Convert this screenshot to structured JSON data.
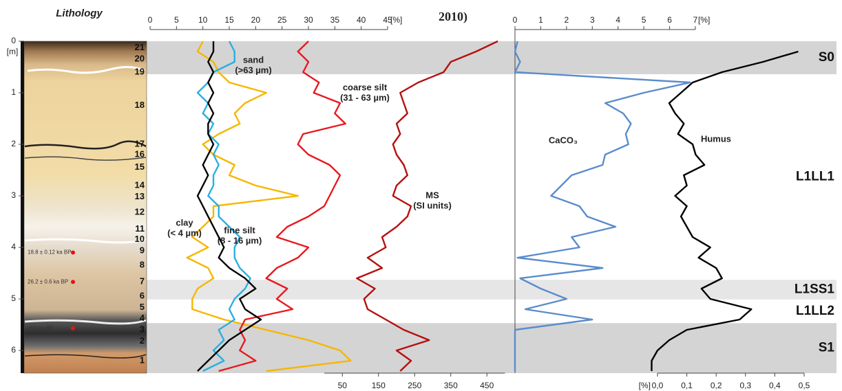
{
  "header": "2010)",
  "horizons": [
    {
      "name": "S0",
      "top": 0,
      "bottom": 0.64,
      "shade": "#d4d4d4"
    },
    {
      "name": "L1LL1",
      "top": 0.64,
      "bottom": 4.63
    },
    {
      "name": "L1SS1",
      "top": 4.63,
      "bottom": 5.01,
      "shade": "#e6e6e6"
    },
    {
      "name": "L1LL2",
      "top": 5.01,
      "bottom": 5.47
    },
    {
      "name": "S1",
      "top": 5.47,
      "bottom": 6.44,
      "shade": "#d4d4d4"
    }
  ],
  "chart_data": [
    {
      "type": "lithology",
      "title": "Lithology",
      "y_label": "[m]",
      "ylim": [
        0,
        6.5
      ],
      "yticks": [
        0,
        1,
        2,
        3,
        4,
        5,
        6
      ],
      "layers": [
        {
          "label": "21",
          "depth": 0.13
        },
        {
          "label": "20",
          "depth": 0.35
        },
        {
          "label": "19",
          "depth": 0.6
        },
        {
          "label": "18",
          "depth": 1.25
        },
        {
          "label": "17",
          "depth": 2.0
        },
        {
          "label": "16",
          "depth": 2.2
        },
        {
          "label": "15",
          "depth": 2.45
        },
        {
          "label": "14",
          "depth": 2.8
        },
        {
          "label": "13",
          "depth": 3.02
        },
        {
          "label": "12",
          "depth": 3.32
        },
        {
          "label": "11",
          "depth": 3.65
        },
        {
          "label": "10",
          "depth": 3.85
        },
        {
          "label": "9",
          "depth": 4.07
        },
        {
          "label": "8",
          "depth": 4.35
        },
        {
          "label": "7",
          "depth": 4.67
        },
        {
          "label": "6",
          "depth": 4.95
        },
        {
          "label": "5",
          "depth": 5.17
        },
        {
          "label": "4",
          "depth": 5.38
        },
        {
          "label": "3",
          "depth": 5.6
        },
        {
          "label": "2",
          "depth": 5.82
        },
        {
          "label": "1",
          "depth": 6.2
        }
      ],
      "dates": [
        {
          "label": "18.8 ± 0.12 ka BP",
          "depth": 4.1
        },
        {
          "label": "26.2 ± 0.6 ka BP",
          "depth": 4.67
        },
        {
          "label": ">50 ka BP",
          "depth": 5.57
        }
      ]
    },
    {
      "type": "line",
      "xlim": [
        0,
        45
      ],
      "xticks": [
        0,
        5,
        10,
        15,
        20,
        25,
        30,
        35,
        40,
        45
      ],
      "x_unit": "[%]",
      "x2lim": [
        0,
        500
      ],
      "x2ticks": [
        50,
        150,
        250,
        350,
        450
      ],
      "y": [
        0,
        0.2,
        0.4,
        0.6,
        0.8,
        1,
        1.2,
        1.4,
        1.6,
        1.8,
        2,
        2.2,
        2.4,
        2.6,
        2.8,
        3,
        3.2,
        3.4,
        3.6,
        3.8,
        4,
        4.2,
        4.4,
        4.6,
        4.8,
        5,
        5.2,
        5.4,
        5.6,
        5.8,
        6,
        6.2,
        6.4
      ],
      "series": [
        {
          "name": "sand",
          "detail": "(>63 µm)",
          "color": "#f5b700",
          "values": [
            10,
            9,
            12,
            13,
            15,
            22,
            18,
            16,
            17,
            13,
            10,
            12,
            16,
            15,
            20,
            28,
            12,
            12,
            10,
            8,
            11,
            7,
            11,
            12,
            9,
            8,
            8,
            14,
            22,
            30,
            36,
            38,
            22
          ]
        },
        {
          "name": "coarse silt",
          "detail": "(31 - 63 µm)",
          "color": "#e8191e",
          "values": [
            30,
            28,
            30,
            29,
            32,
            31,
            36,
            35,
            37,
            29,
            28,
            30,
            34,
            36,
            35,
            34,
            33,
            30,
            26,
            24,
            30,
            28,
            24,
            22,
            26,
            24,
            27,
            18,
            17,
            18,
            17,
            20,
            13
          ]
        },
        {
          "name": "fine silt",
          "detail": "(8 - 16 µm)",
          "color": "#2aaee2",
          "values": [
            15,
            16,
            16,
            12,
            11,
            9,
            11,
            10,
            12,
            11,
            13,
            12,
            13,
            12,
            12,
            11,
            13,
            13,
            15,
            17,
            16,
            16,
            17,
            19,
            18,
            16,
            15,
            16,
            13,
            14,
            12,
            14,
            10
          ]
        },
        {
          "name": "clay",
          "detail": "(< 4 µm)",
          "color": "#000000",
          "values": [
            12,
            12,
            11,
            12,
            11,
            12,
            11,
            12,
            11,
            11,
            12,
            11,
            10,
            11,
            10,
            9,
            10,
            11,
            12,
            13,
            14,
            13,
            15,
            18,
            20,
            17,
            18,
            21,
            18,
            15,
            13,
            11,
            9
          ]
        },
        {
          "name": "MS",
          "detail": "(SI units)",
          "color": "#b50f0f",
          "axis": "x2",
          "values": [
            480,
            420,
            350,
            330,
            260,
            210,
            220,
            230,
            200,
            210,
            190,
            200,
            220,
            230,
            200,
            190,
            240,
            230,
            200,
            160,
            170,
            120,
            160,
            90,
            140,
            110,
            120,
            170,
            220,
            290,
            200,
            240,
            210
          ]
        }
      ]
    },
    {
      "type": "line",
      "xlim": [
        0,
        7
      ],
      "xticks": [
        0,
        1,
        2,
        3,
        4,
        5,
        6,
        7
      ],
      "x_unit": "[%]",
      "x2lim": [
        0,
        0.5
      ],
      "x2_unit": "[%]",
      "x2ticks": [
        {
          "value": 0,
          "label": "0,0"
        },
        {
          "value": 0.1,
          "label": "0,1"
        },
        {
          "value": 0.2,
          "label": "0,2"
        },
        {
          "value": 0.3,
          "label": "0,3"
        },
        {
          "value": 0.4,
          "label": "0,4"
        },
        {
          "value": 0.5,
          "label": "0,5"
        }
      ],
      "y": [
        0,
        0.2,
        0.4,
        0.6,
        0.8,
        1,
        1.2,
        1.4,
        1.6,
        1.8,
        2,
        2.2,
        2.4,
        2.6,
        2.8,
        3,
        3.2,
        3.4,
        3.6,
        3.8,
        4,
        4.2,
        4.4,
        4.6,
        4.8,
        5,
        5.2,
        5.4,
        5.6,
        5.8,
        6,
        6.2,
        6.4
      ],
      "series": [
        {
          "name": "CaCO₃",
          "color": "#5a8ccc",
          "values": [
            0.1,
            0,
            0.2,
            0,
            6.8,
            5,
            3.5,
            4.2,
            4.5,
            4.3,
            4.4,
            3.5,
            3.4,
            2.2,
            1.8,
            1.4,
            2.5,
            2.8,
            3.9,
            2.2,
            2.5,
            0.1,
            3.4,
            0.2,
            1,
            2,
            0.4,
            3,
            0,
            0,
            0,
            0,
            0
          ]
        },
        {
          "name": "Humus",
          "color": "#000000",
          "axis": "x2",
          "values": [
            null,
            0.48,
            0.36,
            0.22,
            0.12,
            0.08,
            0.04,
            0.06,
            0.09,
            0.07,
            0.12,
            0.13,
            0.16,
            0.09,
            0.1,
            0.06,
            0.1,
            0.08,
            0.1,
            0.12,
            0.18,
            0.14,
            0.2,
            0.22,
            0.15,
            0.18,
            0.32,
            0.28,
            0.1,
            0.04,
            0,
            -0.02,
            -0.02
          ]
        }
      ]
    }
  ]
}
